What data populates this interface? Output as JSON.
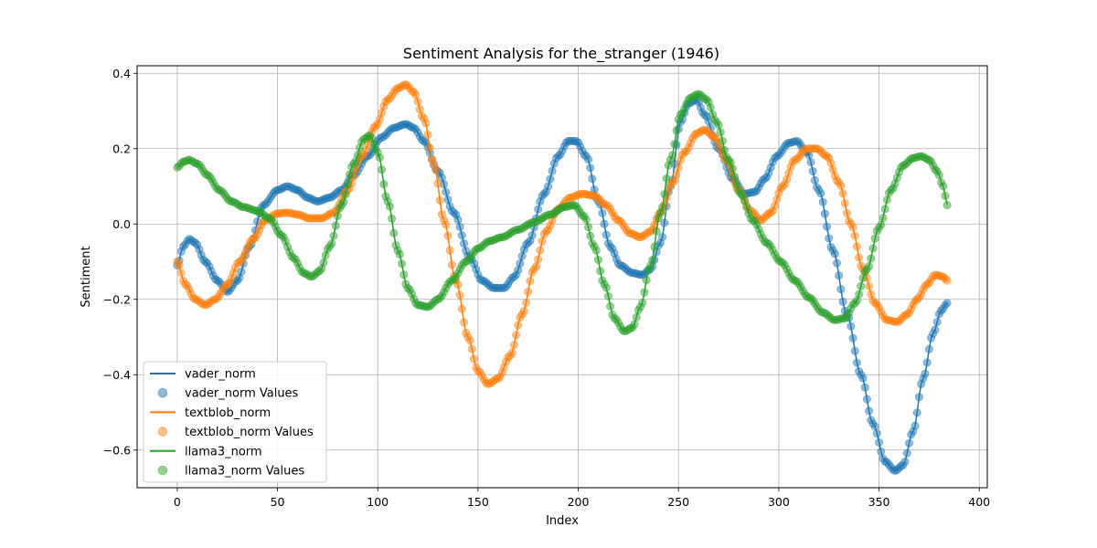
{
  "chart_data": {
    "type": "line",
    "title": "Sentiment Analysis for the_stranger (1946)",
    "xlabel": "Index",
    "ylabel": "Sentiment",
    "xlim": [
      -20,
      404
    ],
    "ylim": [
      -0.7,
      0.42
    ],
    "x_ticks": [
      0,
      50,
      100,
      150,
      200,
      250,
      300,
      350,
      400
    ],
    "y_ticks": [
      -0.6,
      -0.4,
      -0.2,
      0.0,
      0.2,
      0.4
    ],
    "x_tick_labels": [
      "0",
      "50",
      "100",
      "150",
      "200",
      "250",
      "300",
      "350",
      "400"
    ],
    "y_tick_labels": [
      "−0.6",
      "−0.4",
      "−0.2",
      "0.0",
      "0.2",
      "0.4"
    ],
    "grid": true,
    "legend_position": "lower-left",
    "x_range": [
      0,
      384
    ],
    "series": [
      {
        "name": "vader_norm",
        "scatter_name": "vader_norm Values",
        "color": "#1f77b4",
        "points": [
          [
            0,
            -0.11
          ],
          [
            3,
            -0.06
          ],
          [
            6,
            -0.04
          ],
          [
            9,
            -0.05
          ],
          [
            14,
            -0.1
          ],
          [
            20,
            -0.15
          ],
          [
            25,
            -0.18
          ],
          [
            30,
            -0.15
          ],
          [
            36,
            -0.06
          ],
          [
            43,
            0.05
          ],
          [
            50,
            0.09
          ],
          [
            55,
            0.1
          ],
          [
            60,
            0.09
          ],
          [
            65,
            0.07
          ],
          [
            70,
            0.06
          ],
          [
            76,
            0.07
          ],
          [
            82,
            0.09
          ],
          [
            88,
            0.13
          ],
          [
            95,
            0.18
          ],
          [
            102,
            0.23
          ],
          [
            108,
            0.255
          ],
          [
            114,
            0.265
          ],
          [
            118,
            0.255
          ],
          [
            123,
            0.22
          ],
          [
            130,
            0.14
          ],
          [
            138,
            0.03
          ],
          [
            146,
            -0.09
          ],
          [
            152,
            -0.15
          ],
          [
            158,
            -0.17
          ],
          [
            163,
            -0.17
          ],
          [
            168,
            -0.14
          ],
          [
            175,
            -0.05
          ],
          [
            183,
            0.08
          ],
          [
            190,
            0.18
          ],
          [
            195,
            0.22
          ],
          [
            199,
            0.22
          ],
          [
            204,
            0.18
          ],
          [
            210,
            0.06
          ],
          [
            216,
            -0.06
          ],
          [
            221,
            -0.11
          ],
          [
            227,
            -0.13
          ],
          [
            232,
            -0.135
          ],
          [
            236,
            -0.12
          ],
          [
            241,
            -0.05
          ],
          [
            246,
            0.1
          ],
          [
            251,
            0.27
          ],
          [
            255,
            0.32
          ],
          [
            259,
            0.33
          ],
          [
            263,
            0.29
          ],
          [
            270,
            0.2
          ],
          [
            277,
            0.12
          ],
          [
            283,
            0.08
          ],
          [
            288,
            0.085
          ],
          [
            293,
            0.12
          ],
          [
            299,
            0.18
          ],
          [
            305,
            0.215
          ],
          [
            309,
            0.22
          ],
          [
            314,
            0.19
          ],
          [
            320,
            0.09
          ],
          [
            327,
            -0.07
          ],
          [
            334,
            -0.24
          ],
          [
            341,
            -0.4
          ],
          [
            347,
            -0.53
          ],
          [
            353,
            -0.63
          ],
          [
            358,
            -0.655
          ],
          [
            362,
            -0.64
          ],
          [
            367,
            -0.55
          ],
          [
            372,
            -0.41
          ],
          [
            377,
            -0.29
          ],
          [
            381,
            -0.23
          ],
          [
            384,
            -0.21
          ]
        ]
      },
      {
        "name": "textblob_norm",
        "scatter_name": "textblob_norm Values",
        "color": "#ff7f0e",
        "points": [
          [
            0,
            -0.1
          ],
          [
            4,
            -0.16
          ],
          [
            9,
            -0.2
          ],
          [
            14,
            -0.215
          ],
          [
            19,
            -0.2
          ],
          [
            25,
            -0.16
          ],
          [
            31,
            -0.1
          ],
          [
            38,
            -0.04
          ],
          [
            44,
            0.01
          ],
          [
            50,
            0.028
          ],
          [
            55,
            0.03
          ],
          [
            60,
            0.025
          ],
          [
            66,
            0.015
          ],
          [
            72,
            0.015
          ],
          [
            78,
            0.03
          ],
          [
            85,
            0.09
          ],
          [
            92,
            0.18
          ],
          [
            99,
            0.26
          ],
          [
            105,
            0.33
          ],
          [
            110,
            0.36
          ],
          [
            114,
            0.37
          ],
          [
            118,
            0.35
          ],
          [
            123,
            0.28
          ],
          [
            128,
            0.16
          ],
          [
            133,
            0.01
          ],
          [
            139,
            -0.15
          ],
          [
            145,
            -0.3
          ],
          [
            150,
            -0.39
          ],
          [
            155,
            -0.425
          ],
          [
            160,
            -0.41
          ],
          [
            166,
            -0.35
          ],
          [
            172,
            -0.24
          ],
          [
            178,
            -0.12
          ],
          [
            184,
            -0.02
          ],
          [
            190,
            0.04
          ],
          [
            196,
            0.07
          ],
          [
            202,
            0.08
          ],
          [
            208,
            0.075
          ],
          [
            214,
            0.05
          ],
          [
            220,
            0.01
          ],
          [
            226,
            -0.025
          ],
          [
            231,
            -0.035
          ],
          [
            236,
            -0.02
          ],
          [
            241,
            0.03
          ],
          [
            247,
            0.11
          ],
          [
            253,
            0.19
          ],
          [
            259,
            0.24
          ],
          [
            263,
            0.25
          ],
          [
            268,
            0.23
          ],
          [
            274,
            0.17
          ],
          [
            280,
            0.09
          ],
          [
            286,
            0.035
          ],
          [
            291,
            0.01
          ],
          [
            296,
            0.03
          ],
          [
            302,
            0.1
          ],
          [
            308,
            0.17
          ],
          [
            314,
            0.2
          ],
          [
            319,
            0.2
          ],
          [
            324,
            0.18
          ],
          [
            330,
            0.11
          ],
          [
            336,
            0.0
          ],
          [
            342,
            -0.12
          ],
          [
            348,
            -0.21
          ],
          [
            354,
            -0.255
          ],
          [
            359,
            -0.26
          ],
          [
            364,
            -0.24
          ],
          [
            369,
            -0.2
          ],
          [
            374,
            -0.16
          ],
          [
            378,
            -0.135
          ],
          [
            382,
            -0.14
          ],
          [
            384,
            -0.15
          ]
        ]
      },
      {
        "name": "llama3_norm",
        "scatter_name": "llama3_norm Values",
        "color": "#2ca02c",
        "points": [
          [
            0,
            0.15
          ],
          [
            3,
            0.165
          ],
          [
            6,
            0.17
          ],
          [
            10,
            0.16
          ],
          [
            15,
            0.13
          ],
          [
            21,
            0.09
          ],
          [
            27,
            0.06
          ],
          [
            33,
            0.045
          ],
          [
            40,
            0.035
          ],
          [
            46,
            0.015
          ],
          [
            52,
            -0.03
          ],
          [
            58,
            -0.09
          ],
          [
            63,
            -0.13
          ],
          [
            67,
            -0.14
          ],
          [
            71,
            -0.125
          ],
          [
            76,
            -0.06
          ],
          [
            82,
            0.05
          ],
          [
            88,
            0.16
          ],
          [
            93,
            0.225
          ],
          [
            96,
            0.235
          ],
          [
            100,
            0.19
          ],
          [
            105,
            0.06
          ],
          [
            110,
            -0.07
          ],
          [
            115,
            -0.17
          ],
          [
            120,
            -0.215
          ],
          [
            125,
            -0.22
          ],
          [
            130,
            -0.2
          ],
          [
            137,
            -0.15
          ],
          [
            144,
            -0.1
          ],
          [
            150,
            -0.065
          ],
          [
            156,
            -0.045
          ],
          [
            162,
            -0.035
          ],
          [
            170,
            -0.015
          ],
          [
            178,
            0.005
          ],
          [
            186,
            0.025
          ],
          [
            193,
            0.045
          ],
          [
            198,
            0.05
          ],
          [
            203,
            0.02
          ],
          [
            208,
            -0.06
          ],
          [
            213,
            -0.16
          ],
          [
            218,
            -0.25
          ],
          [
            223,
            -0.285
          ],
          [
            227,
            -0.275
          ],
          [
            231,
            -0.22
          ],
          [
            236,
            -0.11
          ],
          [
            241,
            0.03
          ],
          [
            246,
            0.17
          ],
          [
            251,
            0.29
          ],
          [
            256,
            0.335
          ],
          [
            260,
            0.345
          ],
          [
            264,
            0.33
          ],
          [
            269,
            0.27
          ],
          [
            275,
            0.17
          ],
          [
            281,
            0.08
          ],
          [
            287,
            0.01
          ],
          [
            294,
            -0.05
          ],
          [
            301,
            -0.1
          ],
          [
            308,
            -0.15
          ],
          [
            315,
            -0.195
          ],
          [
            322,
            -0.235
          ],
          [
            328,
            -0.255
          ],
          [
            333,
            -0.25
          ],
          [
            338,
            -0.21
          ],
          [
            344,
            -0.12
          ],
          [
            350,
            -0.01
          ],
          [
            356,
            0.09
          ],
          [
            362,
            0.155
          ],
          [
            367,
            0.175
          ],
          [
            371,
            0.18
          ],
          [
            375,
            0.17
          ],
          [
            379,
            0.14
          ],
          [
            382,
            0.1
          ],
          [
            384,
            0.05
          ]
        ]
      }
    ]
  }
}
